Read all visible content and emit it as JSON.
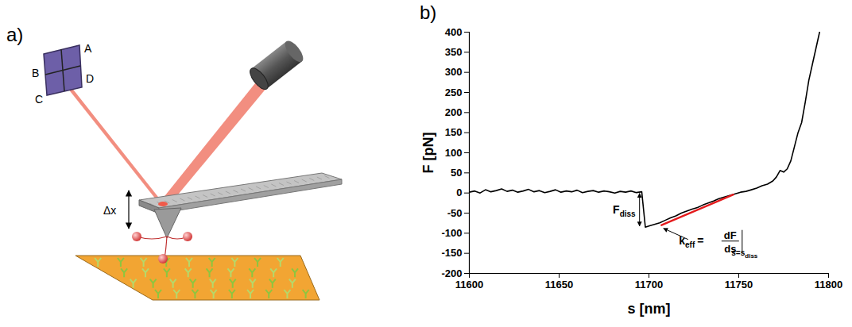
{
  "diagram": {
    "panel_label": "a)",
    "detector_quadrants": [
      "A",
      "B",
      "C",
      "D"
    ],
    "displacement_label": "Δx"
  },
  "chart_data": {
    "panel_label": "b)",
    "type": "line",
    "xlabel": "s [nm]",
    "ylabel": "F [pN]",
    "xlim": [
      11600,
      11800
    ],
    "xticks": [
      11600,
      11650,
      11700,
      11750,
      11800
    ],
    "ylim": [
      -200,
      400
    ],
    "yticks": [
      -200,
      -150,
      -100,
      -50,
      0,
      50,
      100,
      150,
      200,
      250,
      300,
      350,
      400
    ],
    "grid": false,
    "series": [
      {
        "color": "#000000",
        "x": [
          11600,
          11603,
          11606,
          11609,
          11612,
          11615,
          11618,
          11621,
          11624,
          11627,
          11630,
          11633,
          11636,
          11639,
          11642,
          11645,
          11648,
          11651,
          11654,
          11657,
          11660,
          11663,
          11666,
          11669,
          11672,
          11675,
          11678,
          11681,
          11684,
          11687,
          11690,
          11693,
          11696,
          11698,
          11700,
          11703,
          11706,
          11709,
          11712,
          11715,
          11718,
          11721,
          11724,
          11727,
          11730,
          11733,
          11736,
          11739,
          11742,
          11745,
          11748,
          11751,
          11754,
          11757,
          11760,
          11763,
          11766,
          11769,
          11771,
          11773,
          11775,
          11777,
          11779,
          11781,
          11783,
          11785,
          11787,
          11789,
          11791,
          11793,
          11795
        ],
        "values": [
          2,
          5,
          0,
          8,
          3,
          6,
          10,
          4,
          7,
          2,
          5,
          9,
          3,
          6,
          1,
          4,
          8,
          2,
          5,
          3,
          7,
          1,
          4,
          6,
          2,
          5,
          3,
          0,
          4,
          2,
          5,
          1,
          3,
          -85,
          -82,
          -78,
          -74,
          -68,
          -62,
          -57,
          -50,
          -45,
          -40,
          -36,
          -30,
          -25,
          -20,
          -14,
          -10,
          -6,
          -2,
          2,
          4,
          8,
          12,
          18,
          22,
          30,
          40,
          56,
          52,
          60,
          80,
          115,
          150,
          175,
          225,
          280,
          320,
          360,
          400
        ]
      },
      {
        "color": "#e41a1c",
        "x": [
          11707,
          11747
        ],
        "values": [
          -80,
          -4
        ]
      }
    ],
    "annotations": [
      {
        "text": "F",
        "subscript": "diss",
        "x": 11695,
        "y": 0,
        "y_end": -85
      },
      {
        "text": "k",
        "subscript": "eff",
        "equals": "=",
        "numerator": "dF",
        "denominator": "ds",
        "evaluated_at": "s=s",
        "evaluated_at_subscript": "diss",
        "x": 11707,
        "y": -85
      }
    ]
  }
}
